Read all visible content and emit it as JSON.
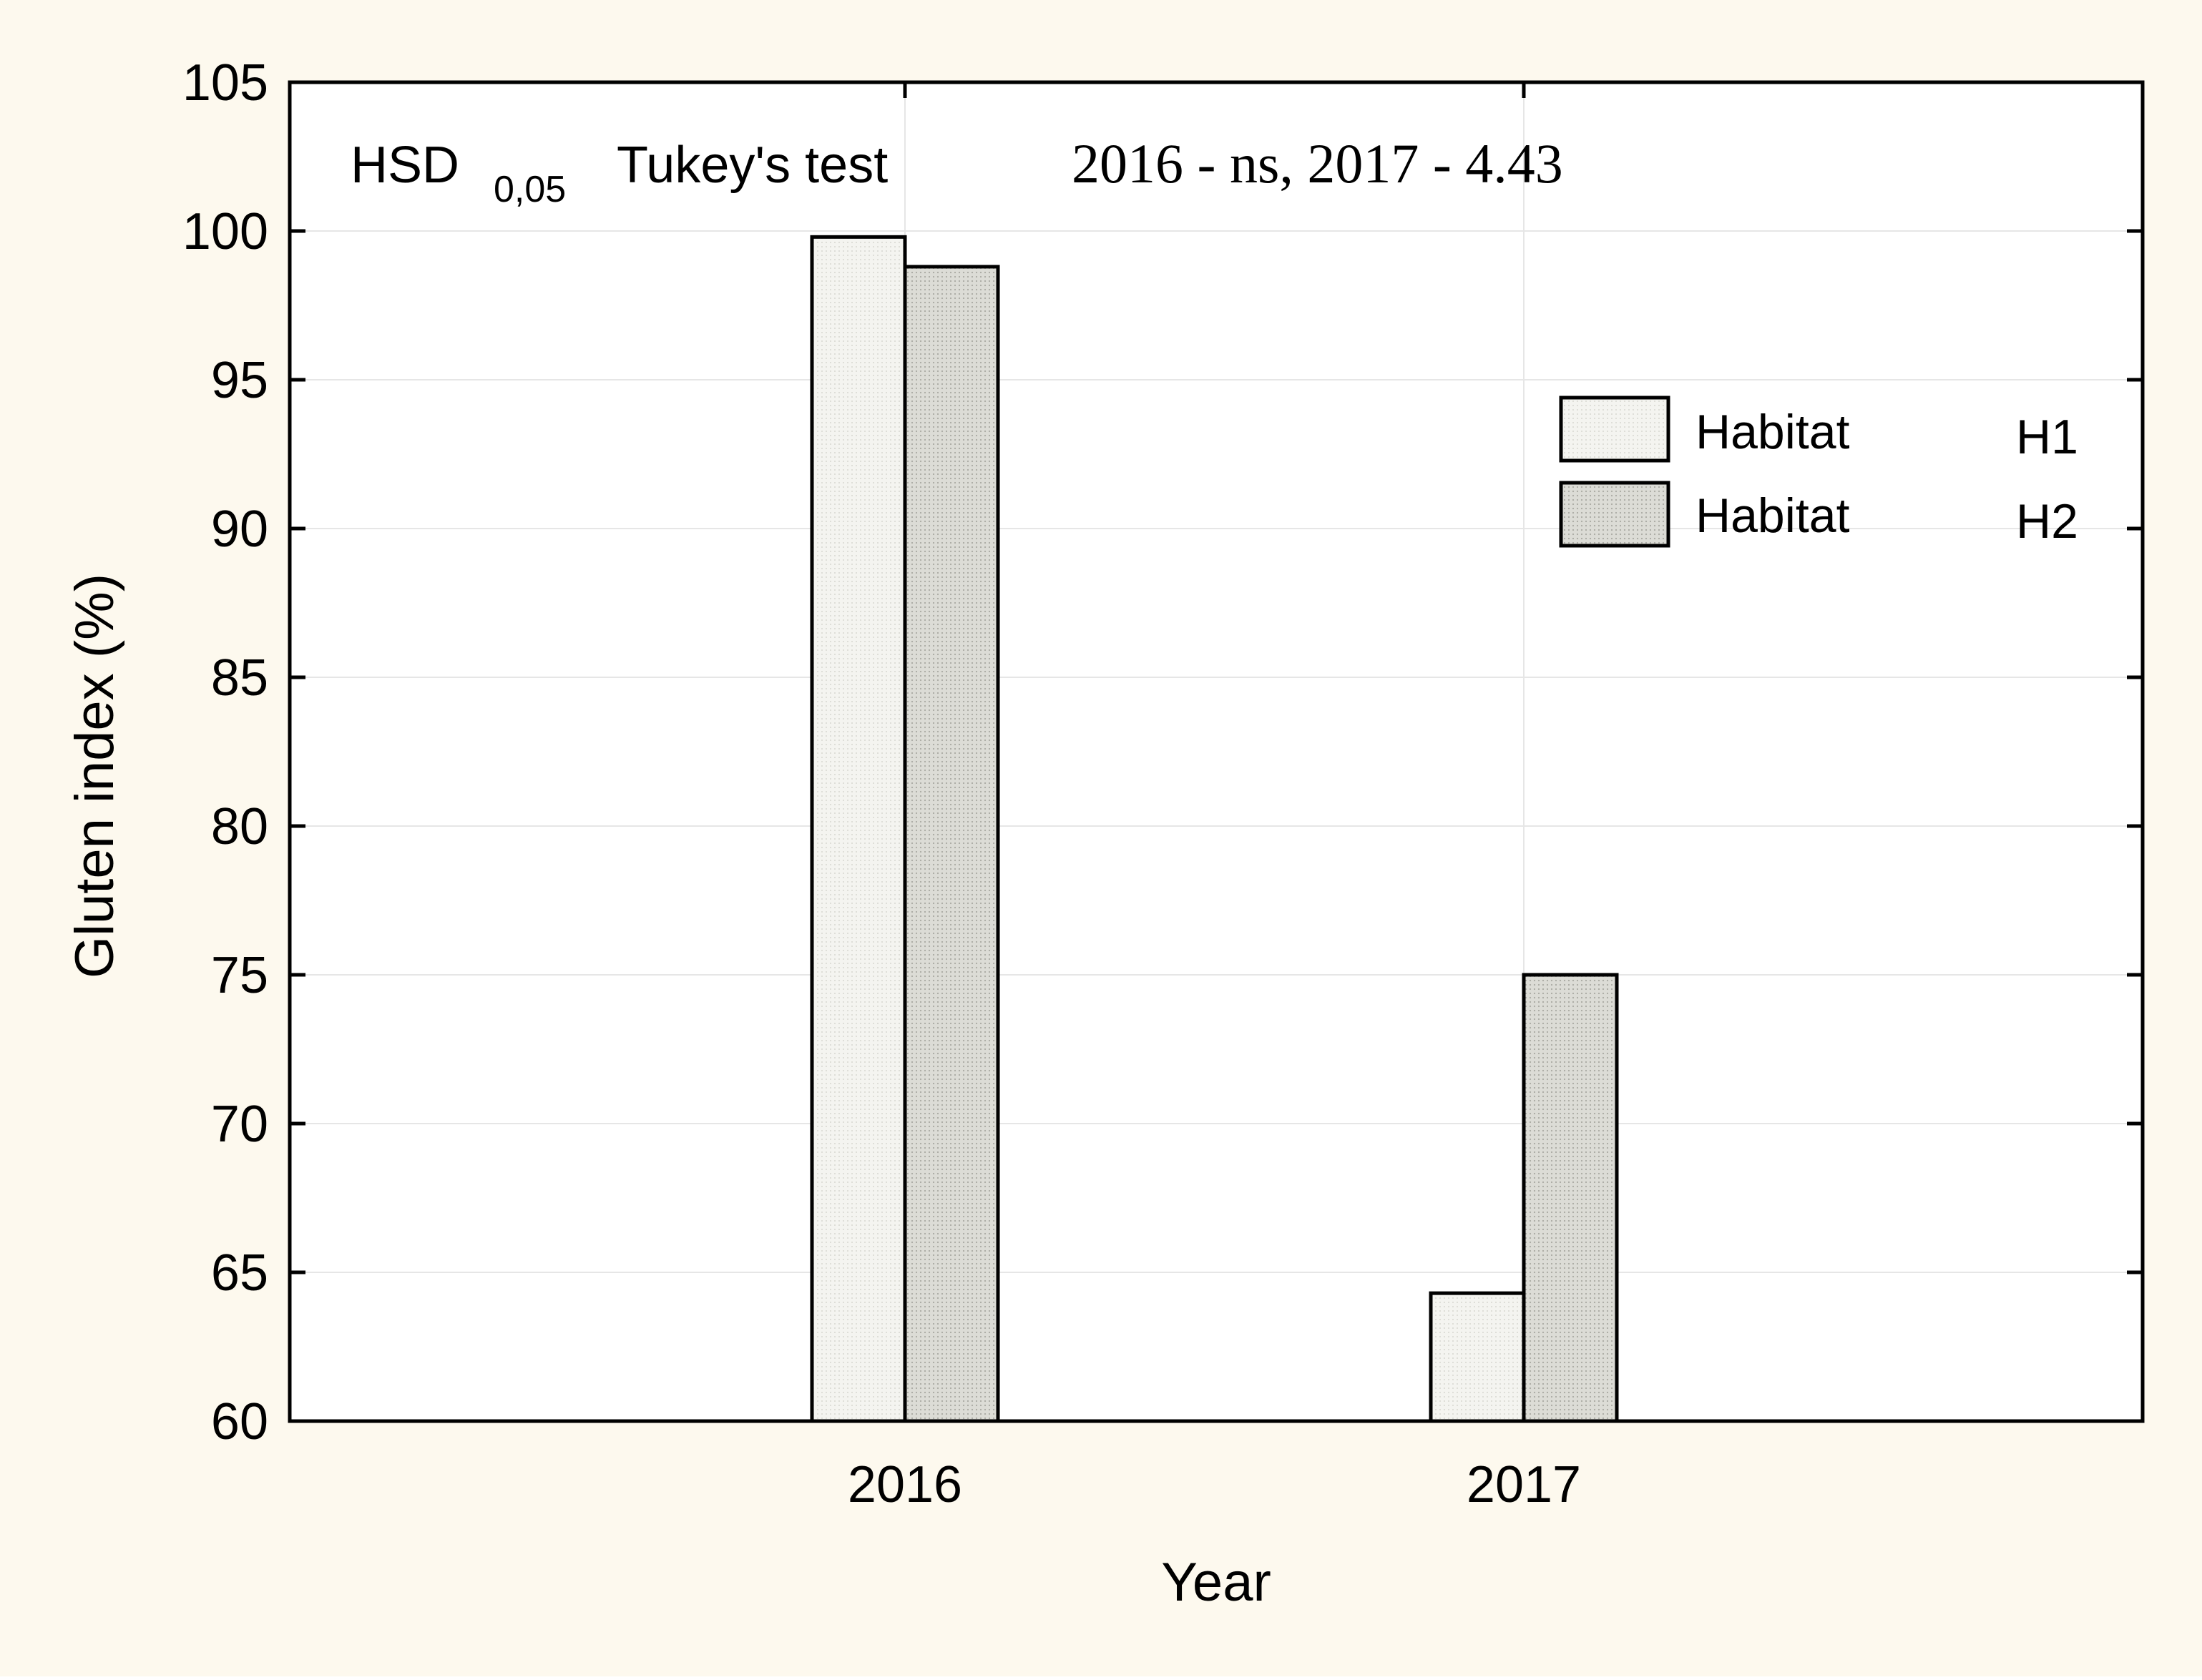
{
  "chart_data": {
    "type": "bar",
    "categories": [
      "2016",
      "2017"
    ],
    "series": [
      {
        "name": "Habitat H1",
        "values": [
          99.8,
          64.3
        ]
      },
      {
        "name": "Habitat H2",
        "values": [
          98.8,
          75.0
        ]
      }
    ],
    "xlabel": "Year",
    "ylabel": "Gluten index (%)",
    "ylim": [
      60,
      105
    ],
    "yticks": [
      60,
      65,
      70,
      75,
      80,
      85,
      90,
      95,
      100,
      105
    ],
    "grid": true,
    "legend": {
      "placement": "top-right",
      "entries": [
        {
          "label": "Habitat",
          "tag": "H1"
        },
        {
          "label": "Habitat",
          "tag": "H2"
        }
      ]
    },
    "annotation": {
      "hsd": "HSD",
      "subscript": "0,05",
      "test": "Tukey's test",
      "values": "2016 - ns, 2017 - 4.43"
    },
    "colors": {
      "page_background": "#FDF9EE",
      "plot_background": "#FFFFFF",
      "h1_fill": "#F4F4F0",
      "h2_fill": "#DCDCD6",
      "grid": "#E6E6E6",
      "stroke": "#000000"
    }
  }
}
